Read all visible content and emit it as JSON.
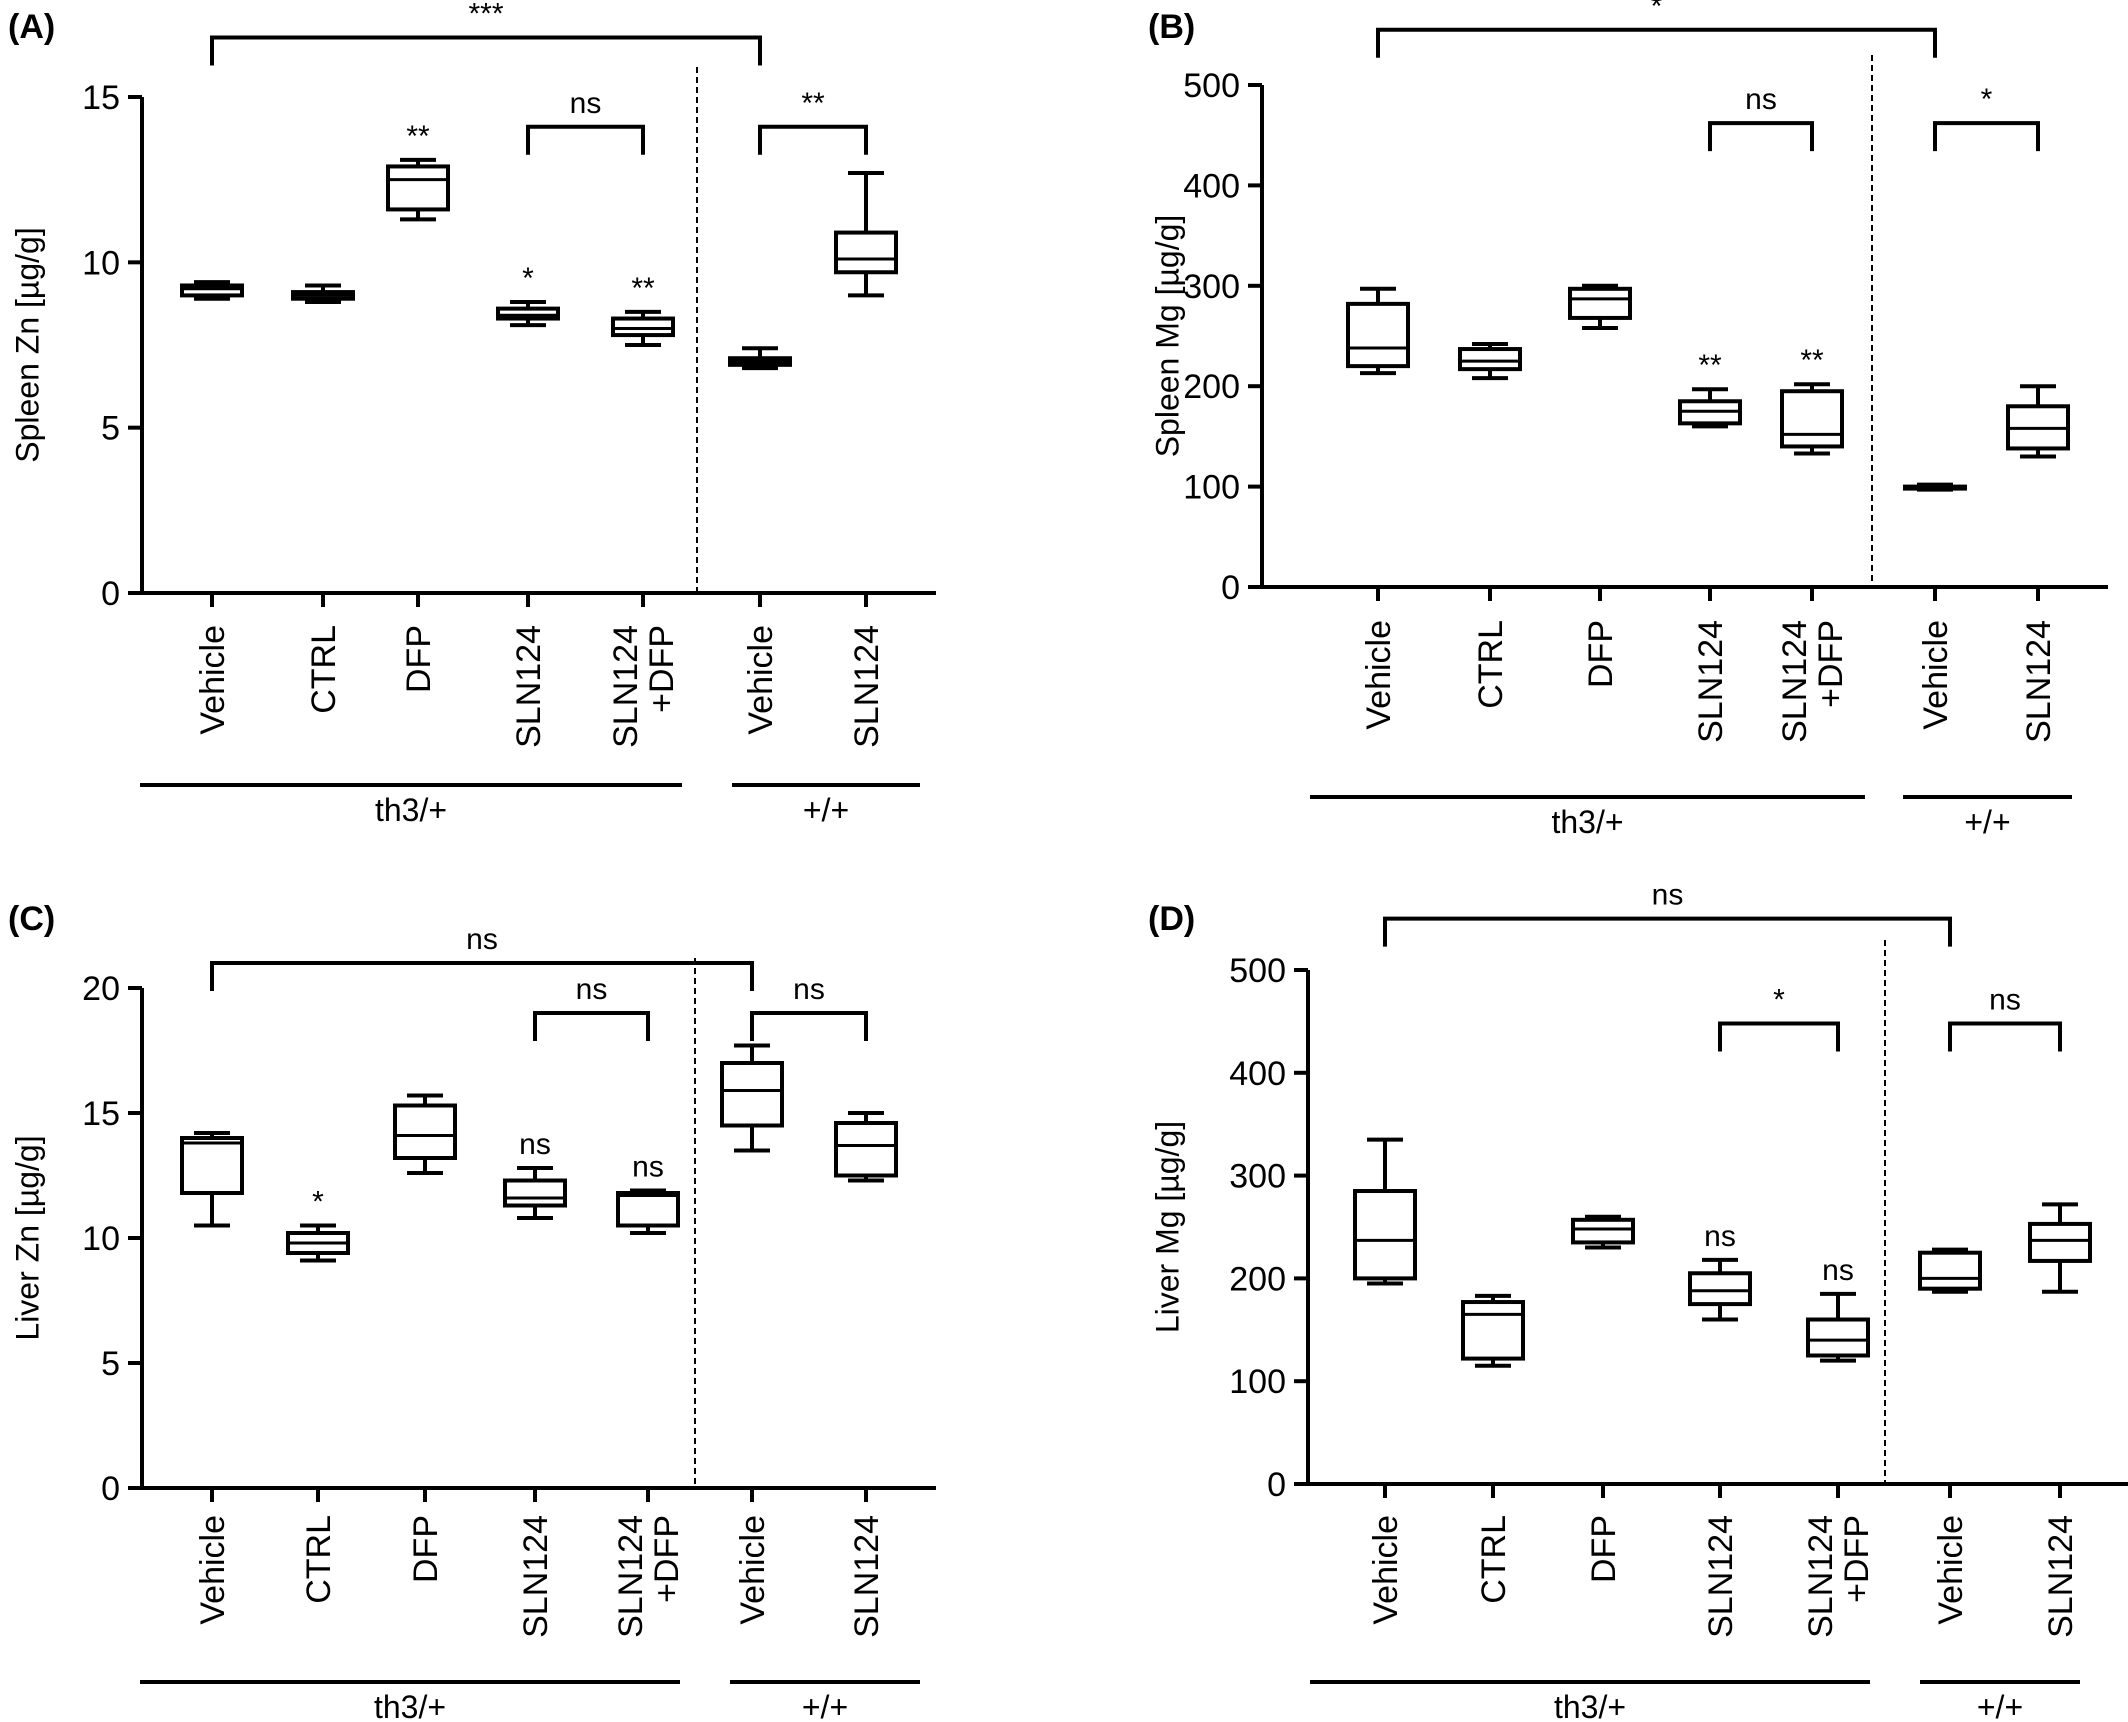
{
  "figure": {
    "panels": [
      {
        "label": "(A)"
      },
      {
        "label": "(B)"
      },
      {
        "label": "(C)"
      },
      {
        "label": "(D)"
      }
    ]
  },
  "chart_data": [
    {
      "type": "box",
      "panel": "(A)",
      "ylabel": "Spleen Zn [µg/g]",
      "ylim": [
        0,
        15
      ],
      "yticks": [
        0,
        5,
        10,
        15
      ],
      "categories": [
        "Vehicle",
        "CTRL",
        "DFP",
        "SLN124",
        "SLN124\n+DFP",
        "Vehicle",
        "SLN124"
      ],
      "groups": [
        {
          "label": "th3/+",
          "members": [
            0,
            1,
            2,
            3,
            4
          ]
        },
        {
          "label": "+/+",
          "members": [
            5,
            6
          ]
        }
      ],
      "boxes": [
        {
          "min": 8.9,
          "q1": 9.0,
          "median": 9.2,
          "q3": 9.3,
          "max": 9.4
        },
        {
          "min": 8.8,
          "q1": 8.9,
          "median": 9.0,
          "q3": 9.1,
          "max": 9.3
        },
        {
          "min": 11.3,
          "q1": 11.6,
          "median": 12.5,
          "q3": 12.9,
          "max": 13.1
        },
        {
          "min": 8.1,
          "q1": 8.3,
          "median": 8.4,
          "q3": 8.6,
          "max": 8.8
        },
        {
          "min": 7.5,
          "q1": 7.8,
          "median": 8.0,
          "q3": 8.3,
          "max": 8.5
        },
        {
          "min": 6.8,
          "q1": 6.9,
          "median": 7.0,
          "q3": 7.1,
          "max": 7.4
        },
        {
          "min": 9.0,
          "q1": 9.7,
          "median": 10.1,
          "q3": 10.9,
          "max": 12.7
        }
      ],
      "annotations": [
        {
          "text": "**",
          "box": 2
        },
        {
          "text": "*",
          "box": 3
        },
        {
          "text": "**",
          "box": 4
        }
      ],
      "brackets": [
        {
          "from": 0,
          "to": 5,
          "text": "***",
          "level": 16.8
        },
        {
          "from": 3,
          "to": 4,
          "text": "ns",
          "level": 14.1
        },
        {
          "from": 5,
          "to": 6,
          "text": "**",
          "level": 14.1
        }
      ]
    },
    {
      "type": "box",
      "panel": "(B)",
      "ylabel": "Spleen Mg [µg/g]",
      "ylim": [
        0,
        500
      ],
      "yticks": [
        0,
        100,
        200,
        300,
        400,
        500
      ],
      "categories": [
        "Vehicle",
        "CTRL",
        "DFP",
        "SLN124",
        "SLN124\n+DFP",
        "Vehicle",
        "SLN124"
      ],
      "groups": [
        {
          "label": "th3/+",
          "members": [
            0,
            1,
            2,
            3,
            4
          ]
        },
        {
          "label": "+/+",
          "members": [
            5,
            6
          ]
        }
      ],
      "boxes": [
        {
          "min": 213,
          "q1": 220,
          "median": 238,
          "q3": 282,
          "max": 297
        },
        {
          "min": 208,
          "q1": 217,
          "median": 225,
          "q3": 237,
          "max": 242
        },
        {
          "min": 258,
          "q1": 268,
          "median": 287,
          "q3": 297,
          "max": 300
        },
        {
          "min": 160,
          "q1": 163,
          "median": 175,
          "q3": 185,
          "max": 197
        },
        {
          "min": 133,
          "q1": 140,
          "median": 152,
          "q3": 195,
          "max": 202
        },
        {
          "min": 97,
          "q1": 98,
          "median": 99,
          "q3": 100,
          "max": 102
        },
        {
          "min": 130,
          "q1": 138,
          "median": 158,
          "q3": 180,
          "max": 200
        }
      ],
      "annotations": [
        {
          "text": "**",
          "box": 3
        },
        {
          "text": "**",
          "box": 4
        }
      ],
      "brackets": [
        {
          "from": 0,
          "to": 5,
          "text": "*",
          "level": 555
        },
        {
          "from": 3,
          "to": 4,
          "text": "ns",
          "level": 462
        },
        {
          "from": 5,
          "to": 6,
          "text": "*",
          "level": 462
        }
      ]
    },
    {
      "type": "box",
      "panel": "(C)",
      "ylabel": "Liver Zn [µg/g]",
      "ylim": [
        0,
        20
      ],
      "yticks": [
        0,
        5,
        10,
        15,
        20
      ],
      "categories": [
        "Vehicle",
        "CTRL",
        "DFP",
        "SLN124",
        "SLN124\n+DFP",
        "Vehicle",
        "SLN124"
      ],
      "groups": [
        {
          "label": "th3/+",
          "members": [
            0,
            1,
            2,
            3,
            4
          ]
        },
        {
          "label": "+/+",
          "members": [
            5,
            6
          ]
        }
      ],
      "boxes": [
        {
          "min": 10.5,
          "q1": 11.8,
          "median": 13.8,
          "q3": 14.0,
          "max": 14.2
        },
        {
          "min": 9.1,
          "q1": 9.4,
          "median": 9.8,
          "q3": 10.2,
          "max": 10.5
        },
        {
          "min": 12.6,
          "q1": 13.2,
          "median": 14.1,
          "q3": 15.3,
          "max": 15.7
        },
        {
          "min": 10.8,
          "q1": 11.3,
          "median": 11.6,
          "q3": 12.3,
          "max": 12.8
        },
        {
          "min": 10.2,
          "q1": 10.5,
          "median": 11.7,
          "q3": 11.8,
          "max": 11.9
        },
        {
          "min": 13.5,
          "q1": 14.5,
          "median": 15.9,
          "q3": 17.0,
          "max": 17.7
        },
        {
          "min": 12.3,
          "q1": 12.5,
          "median": 13.7,
          "q3": 14.6,
          "max": 15.0
        }
      ],
      "annotations": [
        {
          "text": "*",
          "box": 1
        },
        {
          "text": "ns",
          "box": 3
        },
        {
          "text": "ns",
          "box": 4
        }
      ],
      "brackets": [
        {
          "from": 0,
          "to": 5,
          "text": "ns",
          "level": 21.0
        },
        {
          "from": 3,
          "to": 4,
          "text": "ns",
          "level": 19.0
        },
        {
          "from": 5,
          "to": 6,
          "text": "ns",
          "level": 19.0
        }
      ]
    },
    {
      "type": "box",
      "panel": "(D)",
      "ylabel": "Liver Mg [µg/g]",
      "ylim": [
        0,
        500
      ],
      "yticks": [
        0,
        100,
        200,
        300,
        400,
        500
      ],
      "categories": [
        "Vehicle",
        "CTRL",
        "DFP",
        "SLN124",
        "SLN124\n+DFP",
        "Vehicle",
        "SLN124"
      ],
      "groups": [
        {
          "label": "th3/+",
          "members": [
            0,
            1,
            2,
            3,
            4
          ]
        },
        {
          "label": "+/+",
          "members": [
            5,
            6
          ]
        }
      ],
      "boxes": [
        {
          "min": 195,
          "q1": 200,
          "median": 237,
          "q3": 285,
          "max": 335
        },
        {
          "min": 115,
          "q1": 122,
          "median": 165,
          "q3": 177,
          "max": 183
        },
        {
          "min": 230,
          "q1": 235,
          "median": 248,
          "q3": 257,
          "max": 260
        },
        {
          "min": 160,
          "q1": 175,
          "median": 188,
          "q3": 205,
          "max": 218
        },
        {
          "min": 120,
          "q1": 125,
          "median": 140,
          "q3": 160,
          "max": 185
        },
        {
          "min": 187,
          "q1": 190,
          "median": 200,
          "q3": 225,
          "max": 228
        },
        {
          "min": 187,
          "q1": 217,
          "median": 237,
          "q3": 253,
          "max": 272
        }
      ],
      "annotations": [
        {
          "text": "ns",
          "box": 3
        },
        {
          "text": "ns",
          "box": 4
        }
      ],
      "brackets": [
        {
          "from": 0,
          "to": 5,
          "text": "ns",
          "level": 550
        },
        {
          "from": 3,
          "to": 4,
          "text": "*",
          "level": 448
        },
        {
          "from": 5,
          "to": 6,
          "text": "ns",
          "level": 448
        }
      ]
    }
  ]
}
